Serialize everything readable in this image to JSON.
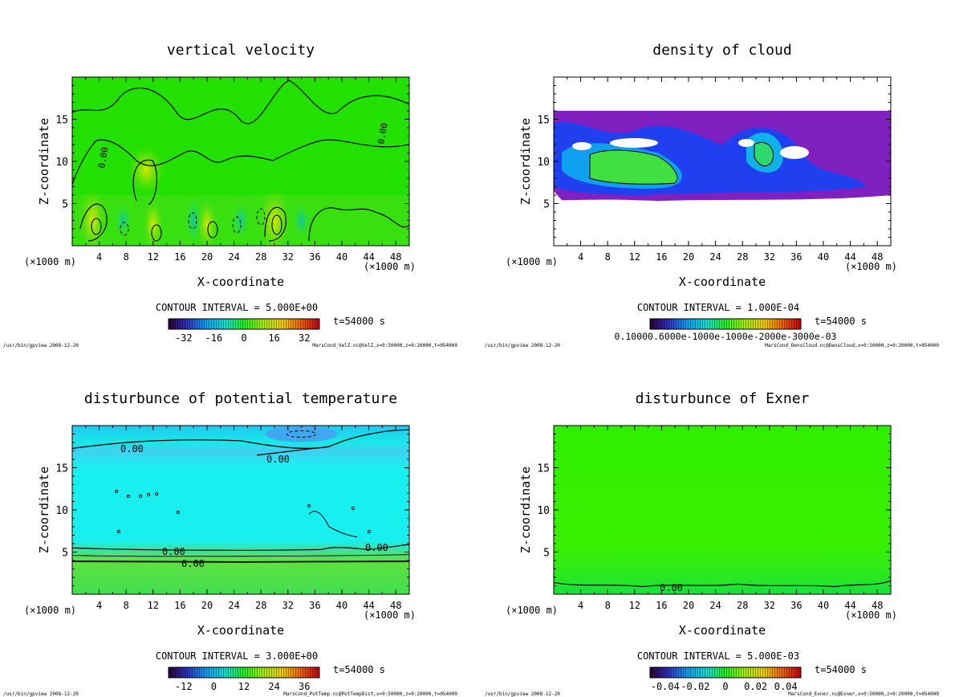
{
  "chart_data": [
    {
      "type": "heatmap",
      "title": "vertical velocity",
      "xlabel": "X-coordinate",
      "ylabel": "Z-coordinate",
      "x_unit_left": "(×1000 m)",
      "x_unit_right": "(×1000 m)",
      "xlim": [
        0,
        50
      ],
      "ylim": [
        0,
        20
      ],
      "xticks": [
        "4",
        "8",
        "12",
        "16",
        "20",
        "24",
        "28",
        "32",
        "36",
        "40",
        "44",
        "48"
      ],
      "yticks": [
        "5",
        "10",
        "15"
      ],
      "contour_interval": "CONTOUR INTERVAL = 5.000E+00",
      "time": "t=54000 s",
      "colorbar": {
        "ticks": [
          "-32",
          "-16",
          "0",
          "16",
          "32"
        ],
        "range": [
          -40,
          40
        ]
      },
      "contour_labels": [
        "0.00",
        "0.00"
      ],
      "footer_left": "/usr/bin/gpview  2008-12-20",
      "footer_right": "MarsCond_VelZ.nc@VelZ,x=0:50000,z=0:20000,t=054000",
      "field": "vertical velocity",
      "background_color": "#22e000"
    },
    {
      "type": "heatmap",
      "title": "density of cloud",
      "xlabel": "X-coordinate",
      "ylabel": "Z-coordinate",
      "x_unit_left": "(×1000 m)",
      "x_unit_right": "(×1000 m)",
      "xlim": [
        0,
        50
      ],
      "ylim": [
        0,
        20
      ],
      "xticks": [
        "4",
        "8",
        "12",
        "16",
        "20",
        "24",
        "28",
        "32",
        "36",
        "40",
        "44",
        "48"
      ],
      "yticks": [
        "5",
        "10",
        "15"
      ],
      "contour_interval": "CONTOUR INTERVAL = 1.000E-04",
      "time": "t=54000 s",
      "colorbar": {
        "ticks_text": "0.10000.6000e-1000e-1000e-2000e-3000e-03",
        "range": [
          0,
          0.0003
        ]
      },
      "footer_left": "/usr/bin/gpview  2008-12-20",
      "footer_right": "MarsCond_DensCloud.nc@DensCloud,x=0:50000,z=0:20000,t=054000",
      "field": "density of cloud",
      "background_color": "#ffffff"
    },
    {
      "type": "heatmap",
      "title": "disturbunce of potential temperature",
      "xlabel": "X-coordinate",
      "ylabel": "Z-coordinate",
      "x_unit_left": "(×1000 m)",
      "x_unit_right": "(×1000 m)",
      "xlim": [
        0,
        50
      ],
      "ylim": [
        0,
        20
      ],
      "xticks": [
        "4",
        "8",
        "12",
        "16",
        "20",
        "24",
        "28",
        "32",
        "36",
        "40",
        "44",
        "48"
      ],
      "yticks": [
        "5",
        "10",
        "15"
      ],
      "contour_interval": "CONTOUR INTERVAL = 3.000E+00",
      "time": "t=54000 s",
      "colorbar": {
        "ticks": [
          "-12",
          "0",
          "12",
          "24",
          "36"
        ],
        "range": [
          -18,
          42
        ]
      },
      "contour_labels": [
        "0.00",
        "0.00",
        "0.00",
        "0.00",
        "6.00"
      ],
      "footer_left": "/usr/bin/gpview  2008-12-20",
      "footer_right": "MarsCond_PotTemp.nc@PotTempDist,x=0:50000,z=0:20000,t=054000",
      "field": "disturbunce of potential temperature",
      "background_color": "#1ee8f0"
    },
    {
      "type": "heatmap",
      "title": "disturbunce of Exner",
      "xlabel": "X-coordinate",
      "ylabel": "Z-coordinate",
      "x_unit_left": "(×1000 m)",
      "x_unit_right": "(×1000 m)",
      "xlim": [
        0,
        50
      ],
      "ylim": [
        0,
        20
      ],
      "xticks": [
        "4",
        "8",
        "12",
        "16",
        "20",
        "24",
        "28",
        "32",
        "36",
        "40",
        "44",
        "48"
      ],
      "yticks": [
        "5",
        "10",
        "15"
      ],
      "contour_interval": "CONTOUR INTERVAL = 5.000E-03",
      "time": "t=54000 s",
      "colorbar": {
        "ticks": [
          "-0.04",
          "-0.02",
          "0",
          "0.02",
          "0.04"
        ],
        "range": [
          -0.05,
          0.05
        ]
      },
      "contour_labels": [
        "0.00"
      ],
      "footer_left": "/usr/bin/gpview  2008-12-20",
      "footer_right": "MarsCond_Exner.nc@Exner,x=0:50000,z=0:20000,t=054000",
      "field": "disturbunce of Exner",
      "background_color": "#33f000"
    }
  ]
}
